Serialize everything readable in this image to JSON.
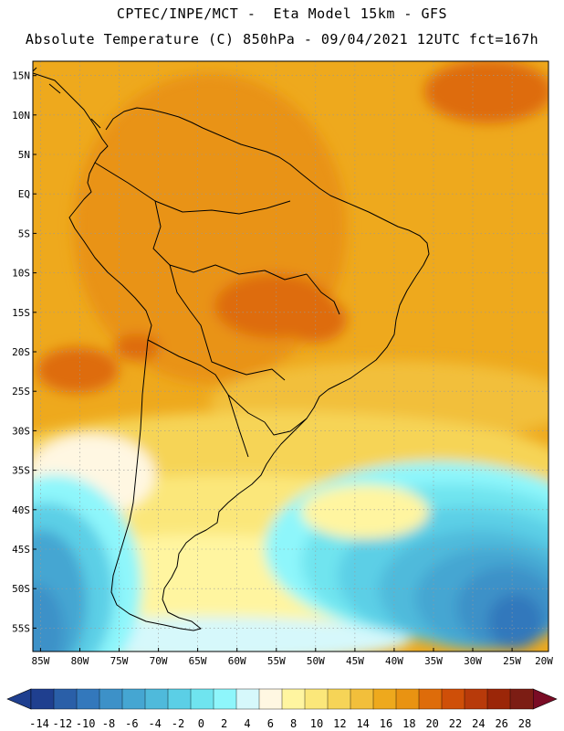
{
  "header": {
    "line1": "CPTEC/INPE/MCT -  Eta Model 15km - GFS",
    "line2": "Absolute Temperature (C) 850hPa - 09/04/2021 12UTC fct=167h"
  },
  "map": {
    "lat_labels": [
      "15N",
      "10N",
      "5N",
      "EQ",
      "5S",
      "10S",
      "15S",
      "20S",
      "25S",
      "30S",
      "35S",
      "40S",
      "45S",
      "50S",
      "55S"
    ],
    "lon_labels": [
      "85W",
      "80W",
      "75W",
      "70W",
      "65W",
      "60W",
      "55W",
      "50W",
      "45W",
      "40W",
      "35W",
      "30W",
      "25W",
      "20W"
    ]
  },
  "colorbar": {
    "labels": [
      "-14",
      "-12",
      "-10",
      "-8",
      "-6",
      "-4",
      "-2",
      "0",
      "2",
      "4",
      "6",
      "8",
      "10",
      "12",
      "14",
      "16",
      "18",
      "20",
      "22",
      "24",
      "26",
      "28"
    ],
    "colors": [
      "#1f3f8f",
      "#2a5fa8",
      "#3378bc",
      "#3d91c8",
      "#45a6d2",
      "#4fbadb",
      "#5bcfe6",
      "#6fe4ef",
      "#8ef6fb",
      "#d6f8fb",
      "#fff7e2",
      "#fff5a0",
      "#fbe77a",
      "#f6d457",
      "#f2bf3b",
      "#eea91d",
      "#e99312",
      "#de6c0a",
      "#cf4f08",
      "#b83a0a",
      "#9b2608",
      "#7c1d14"
    ],
    "under_color": "#1f3f8f",
    "over_color": "#7a0c25"
  }
}
